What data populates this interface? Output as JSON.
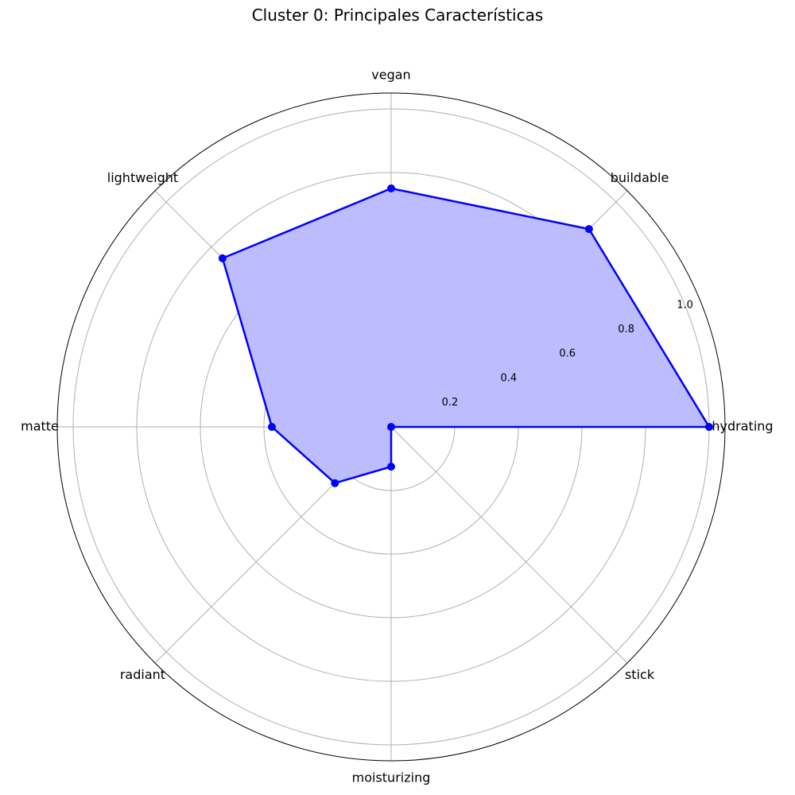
{
  "chart_data": {
    "type": "radar",
    "title": "Cluster 0: Principales Características",
    "categories": [
      "hydrating",
      "buildable",
      "vegan",
      "lightweight",
      "matte",
      "radiant",
      "moisturizing",
      "stick"
    ],
    "values": [
      1.0,
      0.88,
      0.75,
      0.75,
      0.375,
      0.25,
      0.125,
      0.0
    ],
    "rlim": [
      0,
      1.05
    ],
    "r_ticks": [
      0.2,
      0.4,
      0.6,
      0.8,
      1.0
    ],
    "r_tick_labels": [
      "0.2",
      "0.4",
      "0.6",
      "0.8",
      "1.0"
    ],
    "grid": true,
    "series_color": "#0000ff",
    "fill_color": "#bcbcff"
  }
}
